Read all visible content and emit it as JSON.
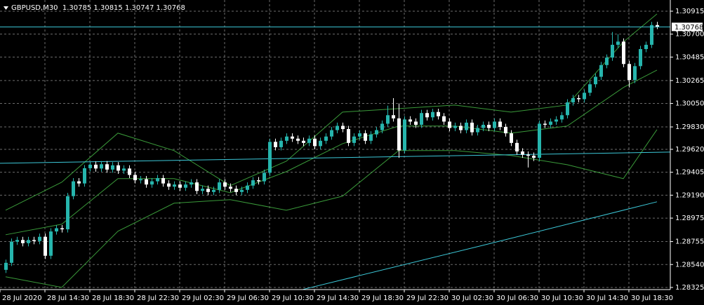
{
  "chart_data": {
    "type": "candlestick",
    "title": "GBPUSD,M30  1.30785 1.30815 1.30747 1.30768",
    "up_color": "#26b5ad",
    "down_color": "#ffffff",
    "grid": true,
    "xlim": [
      -1,
      118.375
    ],
    "xticks": [
      {
        "value": -1,
        "label": "28 Jul 2020"
      },
      {
        "value": 7,
        "label": "28 Jul 14:30"
      },
      {
        "value": 15,
        "label": "28 Jul 18:30"
      },
      {
        "value": 23,
        "label": "28 Jul 22:30"
      },
      {
        "value": 31,
        "label": "29 Jul 02:30"
      },
      {
        "value": 39,
        "label": "29 Jul 06:30"
      },
      {
        "value": 47,
        "label": "29 Jul 10:30"
      },
      {
        "value": 55,
        "label": "29 Jul 14:30"
      },
      {
        "value": 63,
        "label": "29 Jul 18:30"
      },
      {
        "value": 71,
        "label": "29 Jul 22:30"
      },
      {
        "value": 79,
        "label": "30 Jul 02:30"
      },
      {
        "value": 87,
        "label": "30 Jul 06:30"
      },
      {
        "value": 95,
        "label": "30 Jul 10:30"
      },
      {
        "value": 103,
        "label": "30 Jul 14:30"
      },
      {
        "value": 111,
        "label": "30 Jul 18:30"
      }
    ],
    "ylim": [
      1.28305,
      1.3102
    ],
    "yticks": [
      1.30915,
      {
        "value": 1.307,
        "label": "1.30700"
      },
      1.30485,
      1.30265,
      {
        "value": 1.3005,
        "label": "1.30050"
      },
      {
        "value": 1.2983,
        "label": "1.29830"
      },
      {
        "value": 1.2962,
        "label": "1.29620"
      },
      1.29405,
      {
        "value": 1.2919,
        "label": "1.29190"
      },
      1.28975,
      1.28755,
      {
        "value": 1.2854,
        "label": "1.28540"
      },
      1.28325
    ],
    "open": [
      1.2849,
      1.28556,
      1.28754,
      1.2877,
      1.2874,
      1.2877,
      1.2876,
      1.288,
      1.28622,
      1.2885,
      1.2888,
      1.2887,
      1.29181,
      1.2932,
      1.293,
      1.29443,
      1.29476,
      1.2944,
      1.2948,
      1.2943,
      1.2947,
      1.2942,
      1.2944,
      1.2938,
      1.2933,
      1.2934,
      1.2929,
      1.2932,
      1.2935,
      1.293,
      1.2927,
      1.2929,
      1.2926,
      1.2929,
      1.2931,
      1.2923,
      1.2925,
      1.2922,
      1.2924,
      1.2931,
      1.2927,
      1.2925,
      1.2922,
      1.2924,
      1.2928,
      1.2933,
      1.2932,
      1.294,
      1.2969,
      1.2964,
      1.297,
      1.2974,
      1.2972,
      1.297,
      1.2968,
      1.2972,
      1.2965,
      1.297,
      1.2974,
      1.298,
      1.2984,
      1.2981,
      1.2968,
      1.2974,
      1.2977,
      1.297,
      1.2976,
      1.298,
      1.2986,
      1.2994,
      1.2991,
      1.2961,
      1.299,
      1.2988,
      1.2985,
      1.2996,
      1.2992,
      1.2997,
      1.2993,
      1.2988,
      1.2982,
      1.2984,
      1.298,
      1.2987,
      1.2978,
      1.2982,
      1.2985,
      1.2982,
      1.2988,
      1.2983,
      1.2977,
      1.2968,
      1.296,
      1.2957,
      1.2956,
      1.2954,
      1.2986,
      1.2985,
      1.2988,
      1.299,
      1.2994,
      1.3006,
      1.301,
      1.3009,
      1.3015,
      1.3023,
      1.303,
      1.3041,
      1.3048,
      1.306,
      1.3063,
      1.3042,
      1.3027,
      1.304,
      1.3056,
      1.306,
      1.30785
    ],
    "high": [
      1.28586,
      1.28784,
      1.288,
      1.288,
      1.288,
      1.288,
      1.2883,
      1.2883,
      1.2888,
      1.2891,
      1.2891,
      1.29211,
      1.2935,
      1.2935,
      1.29473,
      1.29506,
      1.29506,
      1.2951,
      1.2951,
      1.295,
      1.295,
      1.2947,
      1.2947,
      1.2941,
      1.2937,
      1.2937,
      1.2935,
      1.2938,
      1.2938,
      1.2933,
      1.2932,
      1.2932,
      1.2932,
      1.2934,
      1.2934,
      1.2928,
      1.2928,
      1.2927,
      1.2934,
      1.2934,
      1.293,
      1.2928,
      1.2927,
      1.2931,
      1.2936,
      1.2936,
      1.2943,
      1.2972,
      1.2972,
      1.2973,
      1.2977,
      1.2977,
      1.2975,
      1.2973,
      1.2975,
      1.2975,
      1.2973,
      1.2977,
      1.2983,
      1.2987,
      1.2987,
      1.2984,
      1.2977,
      1.298,
      1.298,
      1.2979,
      1.2983,
      1.2989,
      1.3003,
      1.301,
      1.3005,
      1.2993,
      1.2993,
      1.2991,
      1.2999,
      1.2999,
      1.3,
      1.3,
      1.2996,
      1.2991,
      1.2987,
      1.2987,
      1.299,
      1.299,
      1.2985,
      1.2988,
      1.2988,
      1.2991,
      1.2991,
      1.2986,
      1.298,
      1.2971,
      1.2963,
      1.296,
      1.2959,
      1.2989,
      1.2989,
      1.2991,
      1.2993,
      1.2997,
      1.3009,
      1.3013,
      1.3013,
      1.3018,
      1.3026,
      1.3033,
      1.3044,
      1.3051,
      1.3072,
      1.307,
      1.3066,
      1.3045,
      1.3043,
      1.3059,
      1.3063,
      1.30815,
      1.30815
    ],
    "low": [
      1.2846,
      1.28526,
      1.28724,
      1.2871,
      1.2871,
      1.2873,
      1.2873,
      1.28592,
      1.28592,
      1.2882,
      1.2884,
      1.2884,
      1.29151,
      1.2927,
      1.2927,
      1.29413,
      1.2941,
      1.2941,
      1.294,
      1.294,
      1.2939,
      1.2939,
      1.2935,
      1.293,
      1.293,
      1.2926,
      1.2926,
      1.2929,
      1.2927,
      1.2924,
      1.2924,
      1.2923,
      1.2923,
      1.2926,
      1.292,
      1.292,
      1.2919,
      1.2919,
      1.2921,
      1.2924,
      1.2922,
      1.2919,
      1.2919,
      1.2921,
      1.2925,
      1.2929,
      1.2929,
      1.2937,
      1.2961,
      1.2961,
      1.2967,
      1.2969,
      1.2967,
      1.2965,
      1.2965,
      1.2962,
      1.2962,
      1.2967,
      1.2971,
      1.2977,
      1.2978,
      1.2965,
      1.2965,
      1.2971,
      1.2967,
      1.2967,
      1.2973,
      1.2977,
      1.2983,
      1.2988,
      1.2954,
      1.2958,
      1.2985,
      1.2982,
      1.2982,
      1.2989,
      1.2989,
      1.299,
      1.2985,
      1.2979,
      1.2979,
      1.2977,
      1.2977,
      1.2975,
      1.2975,
      1.2979,
      1.2979,
      1.2979,
      1.298,
      1.2974,
      1.2965,
      1.2957,
      1.2954,
      1.2945,
      1.2951,
      1.2951,
      1.2982,
      1.2982,
      1.2985,
      1.2987,
      1.2991,
      1.3003,
      1.3006,
      1.3006,
      1.3012,
      1.302,
      1.3027,
      1.3038,
      1.3045,
      1.3057,
      1.3039,
      1.302,
      1.3024,
      1.3037,
      1.3053,
      1.3057,
      1.30747
    ],
    "close": [
      1.28556,
      1.28754,
      1.2877,
      1.2874,
      1.2877,
      1.2876,
      1.288,
      1.28622,
      1.2885,
      1.2888,
      1.2887,
      1.29181,
      1.2932,
      1.293,
      1.29443,
      1.29476,
      1.2944,
      1.2948,
      1.2943,
      1.2947,
      1.2942,
      1.2944,
      1.2938,
      1.2933,
      1.2934,
      1.2929,
      1.2932,
      1.2935,
      1.293,
      1.2927,
      1.2929,
      1.2926,
      1.2929,
      1.2931,
      1.2923,
      1.2925,
      1.2922,
      1.2924,
      1.2931,
      1.2927,
      1.2925,
      1.2922,
      1.2924,
      1.2928,
      1.2933,
      1.2932,
      1.294,
      1.2969,
      1.2964,
      1.297,
      1.2974,
      1.2972,
      1.297,
      1.2968,
      1.2972,
      1.2965,
      1.297,
      1.2974,
      1.298,
      1.2984,
      1.2981,
      1.2968,
      1.2974,
      1.2977,
      1.297,
      1.2976,
      1.298,
      1.2986,
      1.2994,
      1.2991,
      1.2961,
      1.299,
      1.2988,
      1.2985,
      1.2996,
      1.2992,
      1.2997,
      1.2993,
      1.2988,
      1.2982,
      1.2984,
      1.298,
      1.2987,
      1.2978,
      1.2982,
      1.2985,
      1.2982,
      1.2988,
      1.2983,
      1.2977,
      1.2968,
      1.296,
      1.2957,
      1.2956,
      1.2954,
      1.2986,
      1.2985,
      1.2988,
      1.299,
      1.2994,
      1.3006,
      1.301,
      1.3009,
      1.3015,
      1.3023,
      1.303,
      1.3041,
      1.3048,
      1.306,
      1.3063,
      1.3042,
      1.3027,
      1.304,
      1.3056,
      1.306,
      1.30785,
      1.30768
    ],
    "overlays": [
      {
        "color": "#3a9a3a",
        "x": [
          0,
          10,
          20,
          30,
          40,
          50,
          60,
          70,
          80,
          90,
          100,
          110,
          116
        ],
        "values": [
          1.29049,
          1.29312,
          1.29772,
          1.29608,
          1.29279,
          1.29509,
          1.29969,
          1.30002,
          1.30035,
          1.29969,
          1.30035,
          1.30626,
          1.30889
        ]
      },
      {
        "color": "#3a9a3a",
        "x": [
          0,
          10,
          20,
          30,
          40,
          50,
          60,
          70,
          80,
          90,
          100,
          110,
          116
        ],
        "values": [
          1.28819,
          1.28918,
          1.29345,
          1.29345,
          1.29213,
          1.29411,
          1.29673,
          1.29838,
          1.29838,
          1.29772,
          1.29838,
          1.30199,
          1.30363
        ]
      },
      {
        "color": "#3a9a3a",
        "x": [
          0,
          10,
          20,
          30,
          40,
          50,
          60,
          70,
          80,
          90,
          100,
          110,
          116
        ],
        "values": [
          1.28425,
          1.28326,
          1.28852,
          1.29115,
          1.29148,
          1.29049,
          1.29181,
          1.29608,
          1.29608,
          1.29562,
          1.29476,
          1.29345,
          1.29805
        ]
      },
      {
        "color": "#3cc8d8",
        "x": [
          -1,
          118.375
        ],
        "values": [
          1.29489,
          1.29594
        ]
      },
      {
        "color": "#3cc8d8",
        "x": [
          53,
          85,
          116
        ],
        "values": [
          1.28307,
          1.2872,
          1.29128
        ]
      }
    ]
  }
}
